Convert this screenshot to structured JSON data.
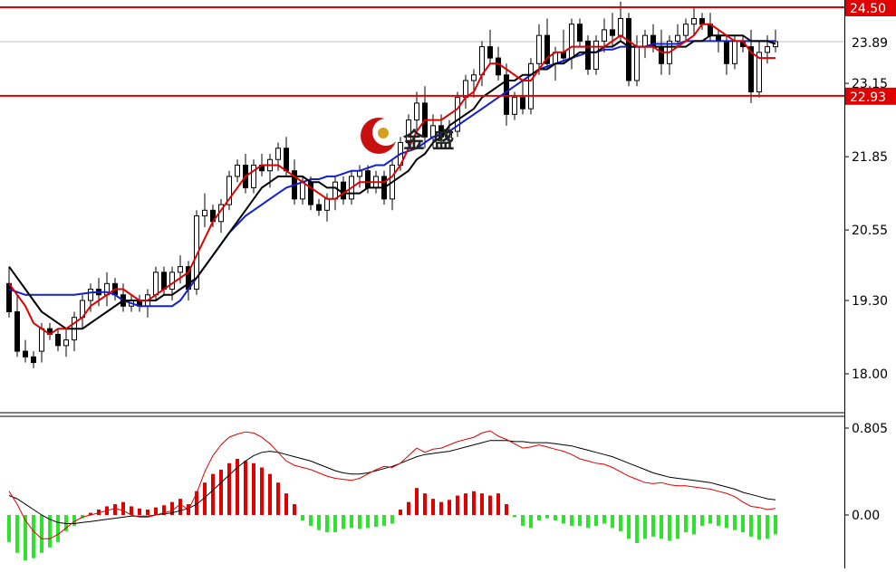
{
  "chart_data": [
    {
      "type": "candlestick",
      "price_axis": {
        "ylim": [
          17.4,
          25.2
        ],
        "ticks": [
          {
            "value": 23.15,
            "label": "23.15"
          },
          {
            "value": 21.85,
            "label": "21.85"
          },
          {
            "value": 20.55,
            "label": "20.55"
          },
          {
            "value": 19.3,
            "label": "19.30"
          },
          {
            "value": 18.0,
            "label": "18.00"
          }
        ]
      },
      "price_labels": [
        {
          "value": 24.5,
          "label": "24.50",
          "style": "red-line"
        },
        {
          "value": 23.89,
          "label": "23.89",
          "style": "current"
        },
        {
          "value": 22.93,
          "label": "22.93",
          "style": "red-line"
        }
      ],
      "candles": [
        [
          19.6,
          19.9,
          19.0,
          19.1
        ],
        [
          19.1,
          19.4,
          18.3,
          18.4
        ],
        [
          18.4,
          18.6,
          18.2,
          18.3
        ],
        [
          18.3,
          18.4,
          18.1,
          18.2
        ],
        [
          18.4,
          18.9,
          18.2,
          18.8
        ],
        [
          18.8,
          18.9,
          18.6,
          18.7
        ],
        [
          18.7,
          18.8,
          18.4,
          18.5
        ],
        [
          18.5,
          18.8,
          18.3,
          18.6
        ],
        [
          18.6,
          19.1,
          18.4,
          19.0
        ],
        [
          19.0,
          19.4,
          18.8,
          19.3
        ],
        [
          19.3,
          19.6,
          19.1,
          19.5
        ],
        [
          19.5,
          19.7,
          19.2,
          19.4
        ],
        [
          19.4,
          19.8,
          19.2,
          19.6
        ],
        [
          19.6,
          19.7,
          19.3,
          19.4
        ],
        [
          19.4,
          19.6,
          19.1,
          19.2
        ],
        [
          19.2,
          19.4,
          19.1,
          19.3
        ],
        [
          19.3,
          19.4,
          19.1,
          19.2
        ],
        [
          19.2,
          19.5,
          19.0,
          19.4
        ],
        [
          19.4,
          19.9,
          19.3,
          19.8
        ],
        [
          19.8,
          19.9,
          19.4,
          19.5
        ],
        [
          19.5,
          19.9,
          19.3,
          19.8
        ],
        [
          19.8,
          20.1,
          19.6,
          19.9
        ],
        [
          19.9,
          20.0,
          19.3,
          19.5
        ],
        [
          19.5,
          20.9,
          19.4,
          20.8
        ],
        [
          20.8,
          21.2,
          20.6,
          20.9
        ],
        [
          20.9,
          21.0,
          20.6,
          20.7
        ],
        [
          20.7,
          21.1,
          20.5,
          21.0
        ],
        [
          21.0,
          21.6,
          20.9,
          21.5
        ],
        [
          21.5,
          21.8,
          21.4,
          21.7
        ],
        [
          21.7,
          21.9,
          21.2,
          21.3
        ],
        [
          21.3,
          21.8,
          21.2,
          21.7
        ],
        [
          21.7,
          21.9,
          21.5,
          21.6
        ],
        [
          21.6,
          21.9,
          21.3,
          21.8
        ],
        [
          21.8,
          22.1,
          21.6,
          22.0
        ],
        [
          22.0,
          22.2,
          21.5,
          21.6
        ],
        [
          21.6,
          21.8,
          21.0,
          21.1
        ],
        [
          21.1,
          21.5,
          21.0,
          21.4
        ],
        [
          21.4,
          21.5,
          20.9,
          21.0
        ],
        [
          21.0,
          21.1,
          20.8,
          20.9
        ],
        [
          20.9,
          21.2,
          20.7,
          21.1
        ],
        [
          21.1,
          21.5,
          20.9,
          21.4
        ],
        [
          21.4,
          21.5,
          21.0,
          21.1
        ],
        [
          21.1,
          21.6,
          21.0,
          21.5
        ],
        [
          21.5,
          21.7,
          21.3,
          21.6
        ],
        [
          21.6,
          21.7,
          21.2,
          21.3
        ],
        [
          21.3,
          21.6,
          21.2,
          21.5
        ],
        [
          21.5,
          21.6,
          21.0,
          21.1
        ],
        [
          21.1,
          21.8,
          20.9,
          21.7
        ],
        [
          21.7,
          22.2,
          21.6,
          22.1
        ],
        [
          22.1,
          22.6,
          22.0,
          22.5
        ],
        [
          22.5,
          23.0,
          22.3,
          22.8
        ],
        [
          22.8,
          23.1,
          22.0,
          22.2
        ],
        [
          22.2,
          22.6,
          22.0,
          22.4
        ],
        [
          22.4,
          22.6,
          22.1,
          22.2
        ],
        [
          22.2,
          22.5,
          22.0,
          22.3
        ],
        [
          22.3,
          23.0,
          22.2,
          22.9
        ],
        [
          22.9,
          23.3,
          22.7,
          23.2
        ],
        [
          23.2,
          23.4,
          22.9,
          23.3
        ],
        [
          23.3,
          23.9,
          23.1,
          23.8
        ],
        [
          23.8,
          24.1,
          23.5,
          23.6
        ],
        [
          23.6,
          23.8,
          23.2,
          23.3
        ],
        [
          23.3,
          23.5,
          22.4,
          22.6
        ],
        [
          22.6,
          23.0,
          22.5,
          22.9
        ],
        [
          22.9,
          23.2,
          22.6,
          22.7
        ],
        [
          22.7,
          23.6,
          22.6,
          23.5
        ],
        [
          23.5,
          24.2,
          23.3,
          24.0
        ],
        [
          24.0,
          24.3,
          23.4,
          23.5
        ],
        [
          23.5,
          23.8,
          23.2,
          23.7
        ],
        [
          23.7,
          24.1,
          23.5,
          23.6
        ],
        [
          23.6,
          24.3,
          23.4,
          24.2
        ],
        [
          24.2,
          24.3,
          23.8,
          23.9
        ],
        [
          23.9,
          24.0,
          23.3,
          23.4
        ],
        [
          23.4,
          24.0,
          23.3,
          23.9
        ],
        [
          23.9,
          24.3,
          23.7,
          24.1
        ],
        [
          24.1,
          24.4,
          23.8,
          24.0
        ],
        [
          24.0,
          24.6,
          23.9,
          24.3
        ],
        [
          24.3,
          24.4,
          23.1,
          23.2
        ],
        [
          23.2,
          24.0,
          23.1,
          23.8
        ],
        [
          23.8,
          24.1,
          23.6,
          24.0
        ],
        [
          24.0,
          24.2,
          23.7,
          23.8
        ],
        [
          23.8,
          24.1,
          23.3,
          23.5
        ],
        [
          23.5,
          24.0,
          23.3,
          23.9
        ],
        [
          23.9,
          24.2,
          23.8,
          24.0
        ],
        [
          24.0,
          24.3,
          23.9,
          24.2
        ],
        [
          24.2,
          24.5,
          24.0,
          24.3
        ],
        [
          24.3,
          24.4,
          24.1,
          24.2
        ],
        [
          24.2,
          24.4,
          23.9,
          24.0
        ],
        [
          24.0,
          24.1,
          23.7,
          23.9
        ],
        [
          23.9,
          24.0,
          23.3,
          23.5
        ],
        [
          23.5,
          24.0,
          23.4,
          23.9
        ],
        [
          23.9,
          24.0,
          23.7,
          23.8
        ],
        [
          23.8,
          24.1,
          22.8,
          23.0
        ],
        [
          23.0,
          23.9,
          22.9,
          23.7
        ],
        [
          23.7,
          24.0,
          23.5,
          23.8
        ],
        [
          23.8,
          24.1,
          23.7,
          23.89
        ]
      ],
      "ma_fast": [
        19.6,
        19.4,
        19.2,
        18.9,
        18.8,
        18.7,
        18.8,
        18.8,
        18.9,
        19.0,
        19.2,
        19.3,
        19.4,
        19.5,
        19.5,
        19.4,
        19.3,
        19.3,
        19.4,
        19.5,
        19.6,
        19.7,
        19.8,
        20.1,
        20.4,
        20.7,
        20.9,
        21.1,
        21.3,
        21.5,
        21.6,
        21.7,
        21.7,
        21.7,
        21.6,
        21.5,
        21.4,
        21.3,
        21.2,
        21.1,
        21.1,
        21.2,
        21.3,
        21.4,
        21.4,
        21.4,
        21.4,
        21.5,
        21.7,
        22.0,
        22.3,
        22.5,
        22.5,
        22.5,
        22.6,
        22.7,
        22.9,
        23.0,
        23.3,
        23.5,
        23.5,
        23.4,
        23.3,
        23.2,
        23.2,
        23.4,
        23.6,
        23.7,
        23.7,
        23.8,
        23.8,
        23.8,
        23.8,
        23.8,
        23.9,
        24.0,
        23.9,
        23.8,
        23.8,
        23.8,
        23.7,
        23.7,
        23.8,
        23.9,
        24.0,
        24.2,
        24.2,
        24.1,
        24.0,
        23.9,
        23.9,
        23.7,
        23.6,
        23.6,
        23.6
      ],
      "ma_mid": [
        19.9,
        19.7,
        19.5,
        19.3,
        19.1,
        19.0,
        18.9,
        18.8,
        18.8,
        18.8,
        18.9,
        19.0,
        19.1,
        19.2,
        19.3,
        19.3,
        19.3,
        19.3,
        19.3,
        19.4,
        19.4,
        19.5,
        19.6,
        19.7,
        19.9,
        20.1,
        20.3,
        20.5,
        20.7,
        20.9,
        21.1,
        21.3,
        21.4,
        21.5,
        21.5,
        21.5,
        21.5,
        21.4,
        21.4,
        21.3,
        21.3,
        21.2,
        21.2,
        21.2,
        21.3,
        21.3,
        21.3,
        21.4,
        21.5,
        21.6,
        21.8,
        21.9,
        22.1,
        22.2,
        22.4,
        22.5,
        22.6,
        22.7,
        22.9,
        23.0,
        23.1,
        23.2,
        23.2,
        23.3,
        23.3,
        23.4,
        23.4,
        23.5,
        23.5,
        23.6,
        23.7,
        23.7,
        23.7,
        23.8,
        23.8,
        23.9,
        23.8,
        23.8,
        23.8,
        23.8,
        23.8,
        23.8,
        23.8,
        23.8,
        23.9,
        23.9,
        24.0,
        24.0,
        24.0,
        24.0,
        24.0,
        23.9,
        23.9,
        23.9,
        23.85
      ],
      "ma_slow": [
        19.5,
        19.45,
        19.4,
        19.4,
        19.4,
        19.4,
        19.4,
        19.4,
        19.4,
        19.42,
        19.44,
        19.45,
        19.45,
        19.4,
        19.3,
        19.25,
        19.2,
        19.2,
        19.2,
        19.2,
        19.2,
        19.3,
        19.5,
        19.7,
        19.9,
        20.1,
        20.3,
        20.5,
        20.65,
        20.8,
        20.9,
        21.0,
        21.1,
        21.2,
        21.3,
        21.35,
        21.4,
        21.45,
        21.45,
        21.5,
        21.5,
        21.55,
        21.6,
        21.6,
        21.65,
        21.7,
        21.7,
        21.8,
        21.9,
        21.95,
        22.0,
        22.1,
        22.2,
        22.25,
        22.3,
        22.4,
        22.5,
        22.6,
        22.7,
        22.8,
        22.9,
        23.0,
        23.1,
        23.2,
        23.3,
        23.4,
        23.45,
        23.5,
        23.55,
        23.6,
        23.65,
        23.7,
        23.7,
        23.75,
        23.75,
        23.8,
        23.8,
        23.8,
        23.8,
        23.85,
        23.85,
        23.85,
        23.85,
        23.9,
        23.9,
        23.9,
        23.9,
        23.9,
        23.9,
        23.9,
        23.9,
        23.9,
        23.9,
        23.9,
        23.9
      ]
    },
    {
      "type": "macd",
      "ylim": [
        -0.65,
        0.92
      ],
      "ticks": [
        {
          "value": 0.805,
          "label": "0.805"
        },
        {
          "value": 0.0,
          "label": "0.00"
        }
      ],
      "histogram": [
        -0.25,
        -0.35,
        -0.42,
        -0.4,
        -0.35,
        -0.3,
        -0.25,
        -0.15,
        -0.1,
        -0.03,
        0.02,
        0.05,
        0.08,
        0.1,
        0.12,
        0.08,
        0.06,
        0.05,
        0.07,
        0.09,
        0.12,
        0.15,
        0.1,
        0.22,
        0.3,
        0.38,
        0.42,
        0.48,
        0.52,
        0.5,
        0.48,
        0.44,
        0.38,
        0.3,
        0.2,
        0.1,
        -0.05,
        -0.1,
        -0.14,
        -0.16,
        -0.16,
        -0.13,
        -0.12,
        -0.13,
        -0.12,
        -0.11,
        -0.1,
        -0.08,
        0.05,
        0.12,
        0.25,
        0.2,
        0.15,
        0.12,
        0.14,
        0.18,
        0.2,
        0.22,
        0.2,
        0.18,
        0.2,
        0.1,
        -0.02,
        -0.1,
        -0.12,
        -0.05,
        -0.03,
        -0.05,
        -0.08,
        -0.1,
        -0.1,
        -0.12,
        -0.1,
        -0.08,
        -0.12,
        -0.15,
        -0.22,
        -0.26,
        -0.22,
        -0.2,
        -0.22,
        -0.24,
        -0.22,
        -0.16,
        -0.18,
        -0.1,
        -0.08,
        -0.1,
        -0.12,
        -0.14,
        -0.16,
        -0.2,
        -0.23,
        -0.22,
        -0.18
      ],
      "dif": [
        0.22,
        0.1,
        -0.05,
        -0.15,
        -0.22,
        -0.22,
        -0.18,
        -0.12,
        -0.06,
        -0.02,
        0.0,
        0.02,
        0.04,
        0.06,
        0.04,
        0.0,
        -0.02,
        -0.02,
        0.0,
        0.02,
        0.04,
        0.1,
        0.05,
        0.2,
        0.4,
        0.55,
        0.65,
        0.72,
        0.75,
        0.77,
        0.76,
        0.72,
        0.66,
        0.58,
        0.5,
        0.46,
        0.44,
        0.42,
        0.39,
        0.36,
        0.34,
        0.33,
        0.32,
        0.34,
        0.38,
        0.42,
        0.45,
        0.44,
        0.48,
        0.55,
        0.62,
        0.58,
        0.61,
        0.62,
        0.65,
        0.68,
        0.7,
        0.72,
        0.76,
        0.78,
        0.73,
        0.7,
        0.66,
        0.62,
        0.63,
        0.65,
        0.63,
        0.61,
        0.59,
        0.56,
        0.52,
        0.5,
        0.48,
        0.47,
        0.44,
        0.4,
        0.36,
        0.33,
        0.3,
        0.29,
        0.3,
        0.28,
        0.27,
        0.27,
        0.26,
        0.25,
        0.24,
        0.22,
        0.2,
        0.17,
        0.12,
        0.08,
        0.07,
        0.05,
        0.06
      ],
      "dea": [
        0.18,
        0.15,
        0.1,
        0.05,
        0.0,
        -0.04,
        -0.07,
        -0.08,
        -0.08,
        -0.07,
        -0.06,
        -0.05,
        -0.04,
        -0.03,
        -0.02,
        -0.01,
        -0.01,
        -0.01,
        0.0,
        0.01,
        0.02,
        0.04,
        0.06,
        0.1,
        0.16,
        0.23,
        0.3,
        0.37,
        0.44,
        0.5,
        0.55,
        0.58,
        0.59,
        0.58,
        0.56,
        0.54,
        0.52,
        0.5,
        0.47,
        0.44,
        0.41,
        0.39,
        0.38,
        0.38,
        0.39,
        0.41,
        0.43,
        0.45,
        0.48,
        0.51,
        0.54,
        0.56,
        0.57,
        0.58,
        0.59,
        0.61,
        0.63,
        0.65,
        0.67,
        0.69,
        0.69,
        0.69,
        0.68,
        0.68,
        0.67,
        0.67,
        0.67,
        0.66,
        0.65,
        0.64,
        0.62,
        0.6,
        0.58,
        0.56,
        0.54,
        0.51,
        0.48,
        0.45,
        0.42,
        0.39,
        0.37,
        0.35,
        0.34,
        0.33,
        0.32,
        0.31,
        0.3,
        0.28,
        0.26,
        0.24,
        0.21,
        0.19,
        0.17,
        0.15,
        0.14
      ]
    }
  ],
  "watermark": {
    "text": "金 盛"
  },
  "colors": {
    "background": "#ffffff",
    "red": "#e00000",
    "black": "#000000",
    "blue": "#1020d0",
    "macd_up": "#e00000",
    "macd_down": "#2ee22e",
    "macd_slow_line": "#e00000",
    "macd_fast_line": "#000000",
    "current_price_line": "#c0c0c0",
    "label_text": "#000000",
    "label_red_text": "#ffffff"
  }
}
